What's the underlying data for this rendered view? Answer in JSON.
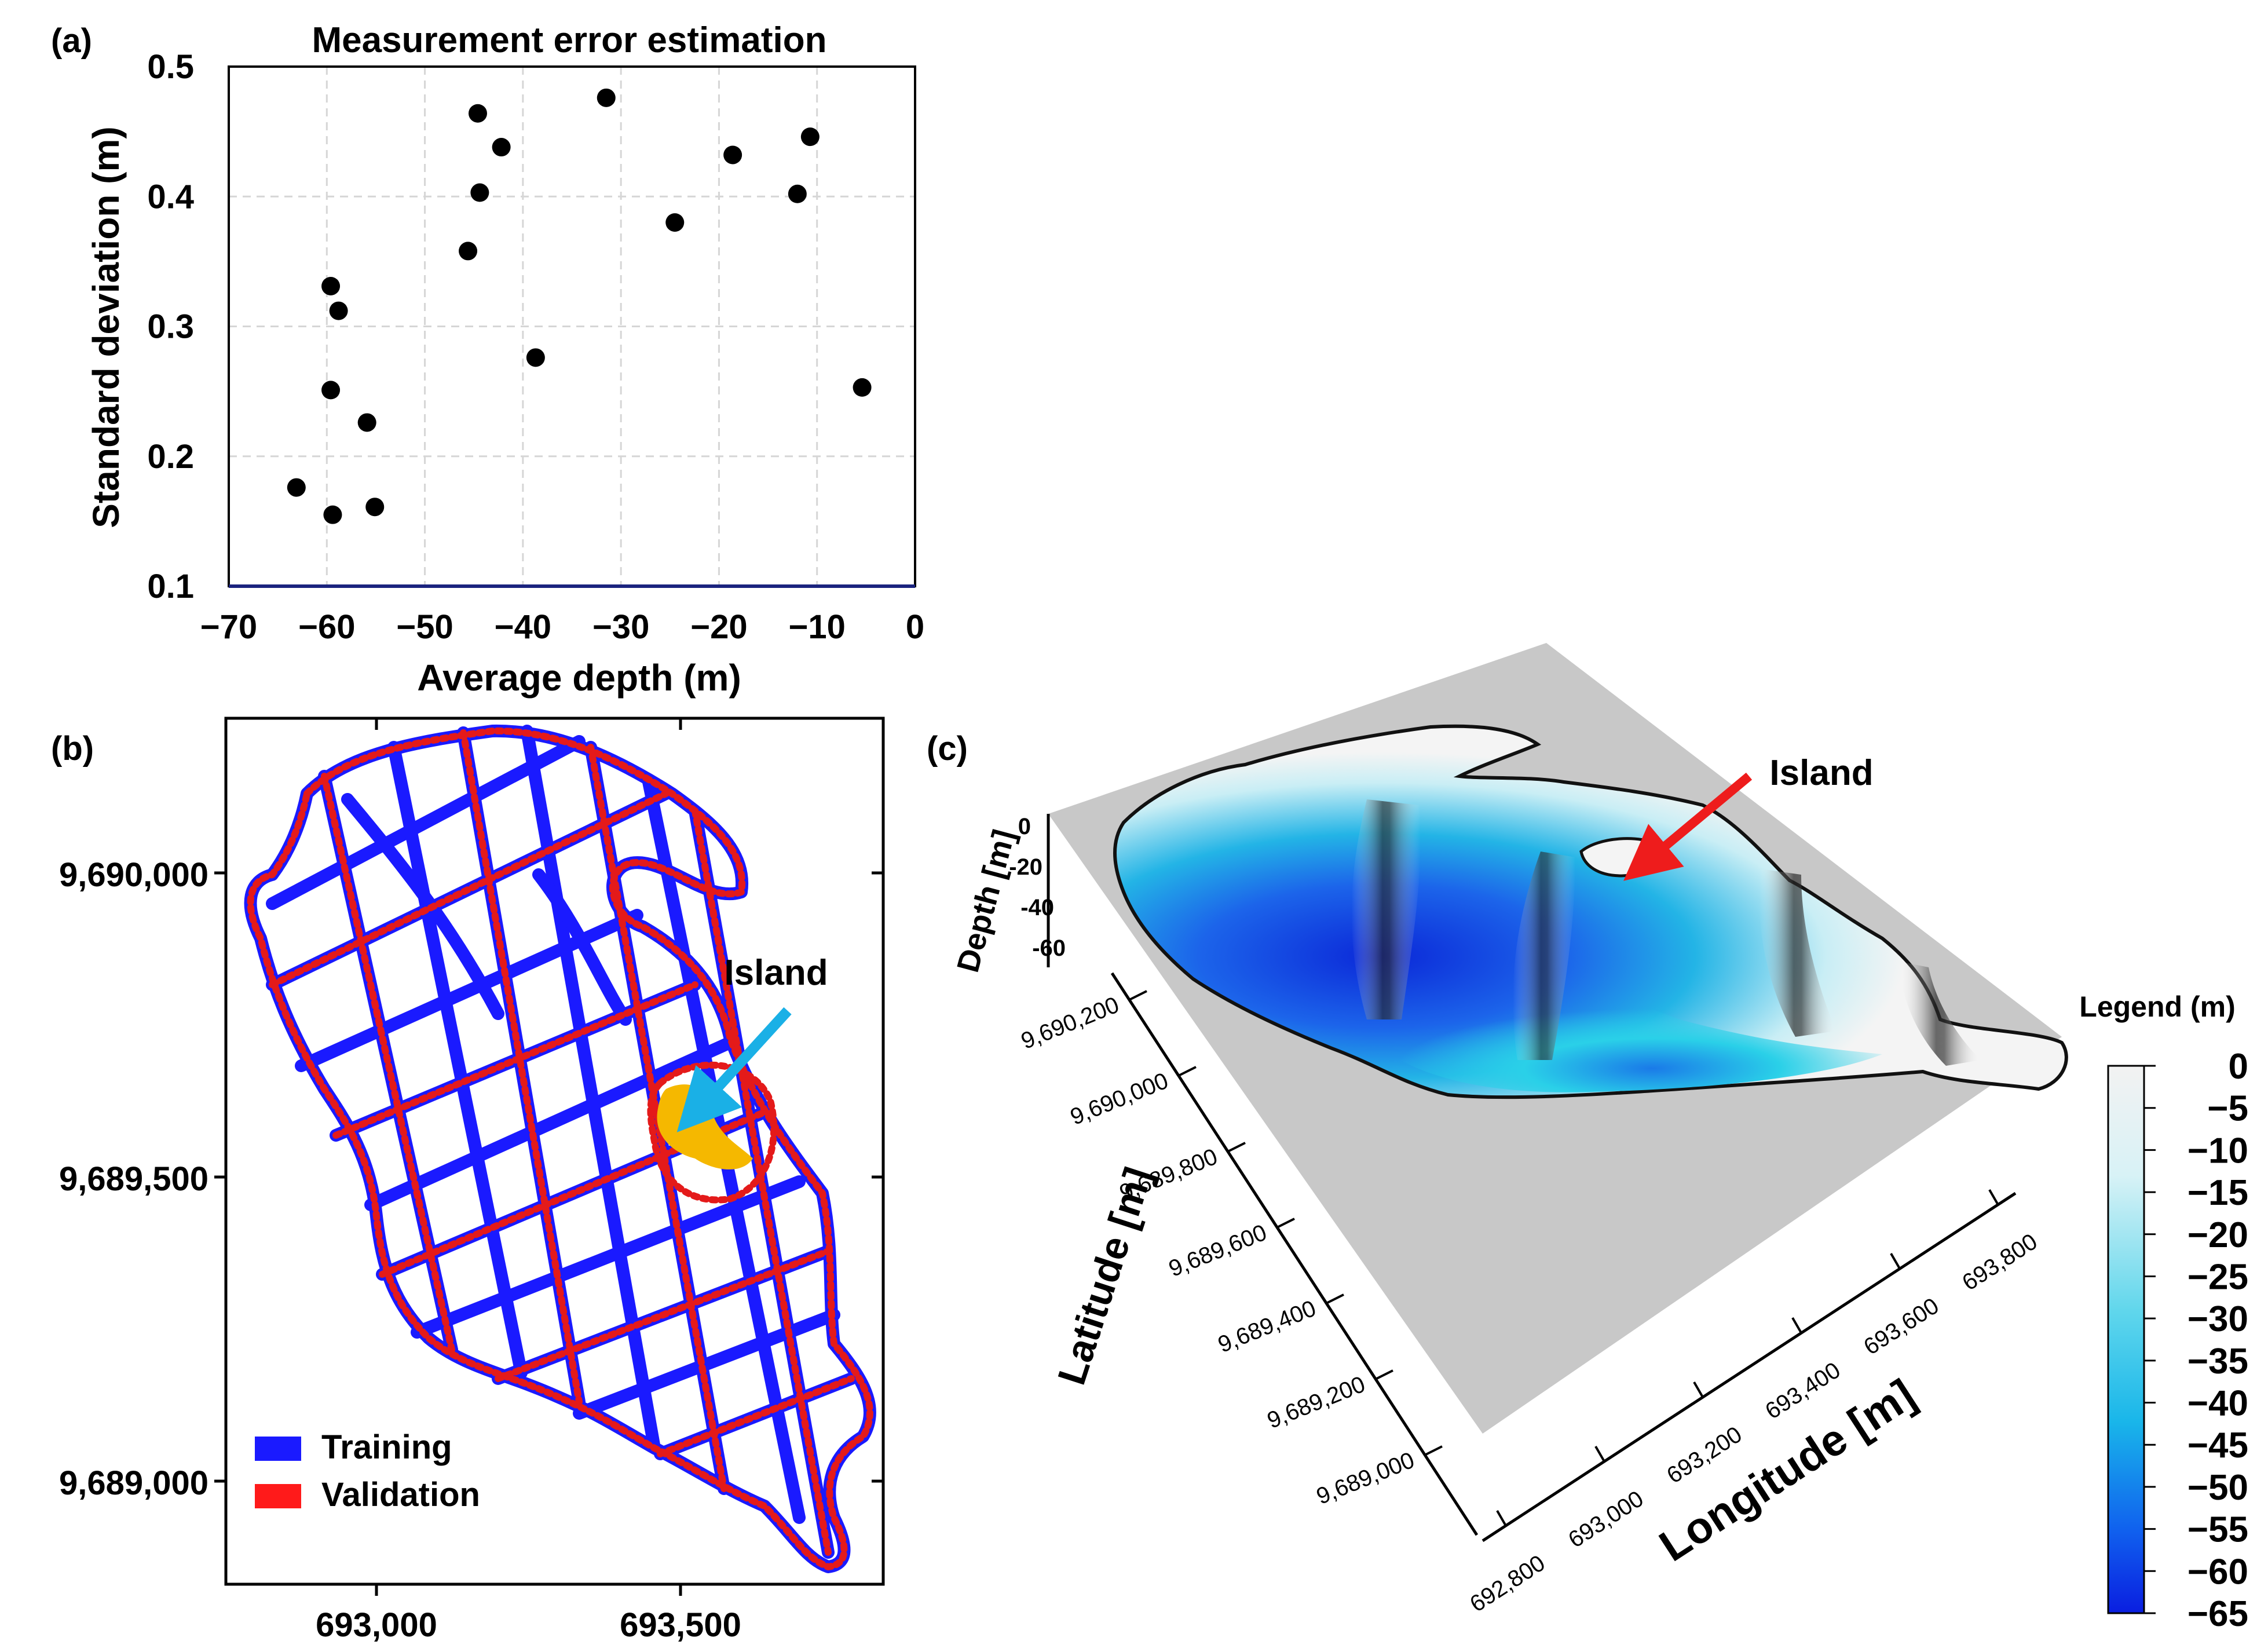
{
  "panel_a": {
    "letter": "(a)",
    "chart_data": {
      "type": "scatter",
      "title": "Measurement error estimation",
      "xlabel": "Average depth (m)",
      "ylabel": "Standard deviation (m)",
      "xlim": [
        -70,
        0
      ],
      "ylim": [
        0.1,
        0.5
      ],
      "grid": true,
      "xticks": [
        -70,
        -60,
        -50,
        -40,
        -30,
        -20,
        -10,
        0
      ],
      "xtick_labels": [
        "−70",
        "−60",
        "−50",
        "−40",
        "−30",
        "−20",
        "−10",
        "0"
      ],
      "yticks": [
        0.1,
        0.2,
        0.3,
        0.4,
        0.5
      ],
      "ytick_labels": [
        "0.1",
        "0.2",
        "0.3",
        "0.4",
        "0.5"
      ],
      "points": [
        {
          "x": -63.1,
          "y": 0.176
        },
        {
          "x": -59.4,
          "y": 0.155
        },
        {
          "x": -59.6,
          "y": 0.251
        },
        {
          "x": -59.6,
          "y": 0.331
        },
        {
          "x": -58.8,
          "y": 0.312
        },
        {
          "x": -55.9,
          "y": 0.226
        },
        {
          "x": -55.1,
          "y": 0.161
        },
        {
          "x": -45.6,
          "y": 0.358
        },
        {
          "x": -44.6,
          "y": 0.464
        },
        {
          "x": -44.4,
          "y": 0.403
        },
        {
          "x": -42.2,
          "y": 0.438
        },
        {
          "x": -38.7,
          "y": 0.276
        },
        {
          "x": -31.5,
          "y": 0.476
        },
        {
          "x": -24.5,
          "y": 0.38
        },
        {
          "x": -18.6,
          "y": 0.432
        },
        {
          "x": -12.0,
          "y": 0.402
        },
        {
          "x": -10.7,
          "y": 0.446
        },
        {
          "x": -5.4,
          "y": 0.253
        }
      ]
    }
  },
  "panel_b": {
    "letter": "(b)",
    "y_tick_labels": [
      "9,690,000",
      "9,689,500",
      "9,689,000"
    ],
    "x_tick_labels": [
      "693,000",
      "693,500"
    ],
    "island_label": "Island",
    "legend": [
      {
        "label": "Training",
        "color": "#1a1aff"
      },
      {
        "label": "Validation",
        "color": "#ff1a1a"
      }
    ],
    "colors": {
      "training": "#1a1aff",
      "validation": "#e41a1a",
      "island": "#f5b800",
      "arrow": "#1ab0e6"
    }
  },
  "panel_c": {
    "letter": "(c)",
    "island_label": "Island",
    "depth_axis_label": "Depth [m]",
    "depth_ticks": [
      "0",
      "-20",
      "-40",
      "-60"
    ],
    "latitude_label": "Latitude [m]",
    "latitude_ticks": [
      "9,690,200",
      "9,690,000",
      "9,689,800",
      "9,689,600",
      "9,689,400",
      "9,689,200",
      "9,689,000"
    ],
    "longitude_label": "Longitude [m]",
    "longitude_ticks": [
      "692,800",
      "693,000",
      "693,200",
      "693,400",
      "693,600",
      "693,800"
    ],
    "legend_title": "Legend (m)",
    "legend_ticks": [
      "0",
      "−5",
      "−10",
      "−15",
      "−20",
      "−25",
      "−30",
      "−35",
      "−40",
      "−45",
      "−50",
      "−55",
      "−60",
      "−65"
    ],
    "colors": {
      "arrow": "#ee1c1c",
      "plane": "#c8c8c8",
      "deep": "#0b2fe0",
      "mid": "#19c8e6",
      "shallow": "#f2f2f2",
      "dark": "#2a2a2a"
    }
  }
}
